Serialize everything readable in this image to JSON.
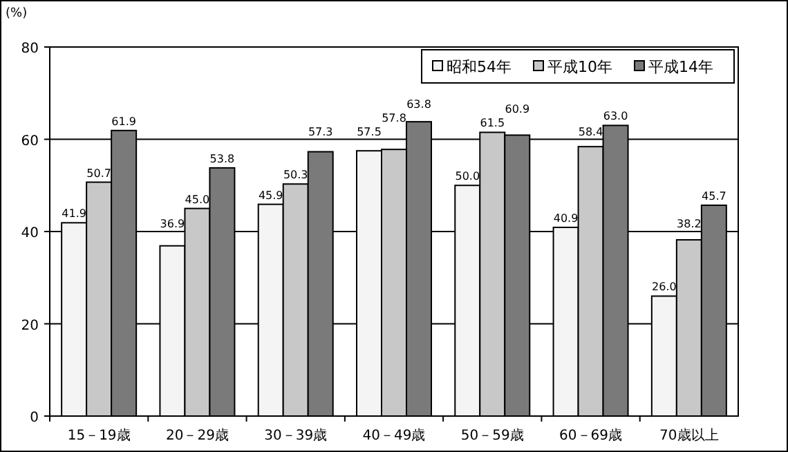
{
  "chart_data": {
    "type": "bar",
    "ylabel": "(%)",
    "categories": [
      "15－19歳",
      "20－29歳",
      "30－39歳",
      "40－49歳",
      "50－59歳",
      "60－69歳",
      "70歳以上"
    ],
    "series": [
      {
        "name": "昭和54年",
        "color": "#f4f4f4",
        "values": [
          41.9,
          36.9,
          45.9,
          57.5,
          50.0,
          40.9,
          26.0
        ],
        "value_labels": [
          "41.9",
          "36.9",
          "45.9",
          "57.5",
          "50.0",
          "40.9",
          "26.0"
        ]
      },
      {
        "name": "平成10年",
        "color": "#c8c8c8",
        "values": [
          50.7,
          45.0,
          50.3,
          57.8,
          61.5,
          58.4,
          38.2
        ],
        "value_labels": [
          "50.7",
          "45.0",
          "50.3",
          "57.8",
          "61.5",
          "58.4",
          "38.2"
        ]
      },
      {
        "name": "平成14年",
        "color": "#7a7a7a",
        "values": [
          61.9,
          53.8,
          57.3,
          63.8,
          60.9,
          63.0,
          45.7
        ],
        "value_labels": [
          "61.9",
          "53.8",
          "57.3",
          "63.8",
          "60.9",
          "63.0",
          "45.7"
        ]
      }
    ],
    "ylim": [
      0,
      80
    ],
    "yticks": [
      0,
      20,
      40,
      60,
      80
    ],
    "grid": "y",
    "legend": "top right"
  }
}
